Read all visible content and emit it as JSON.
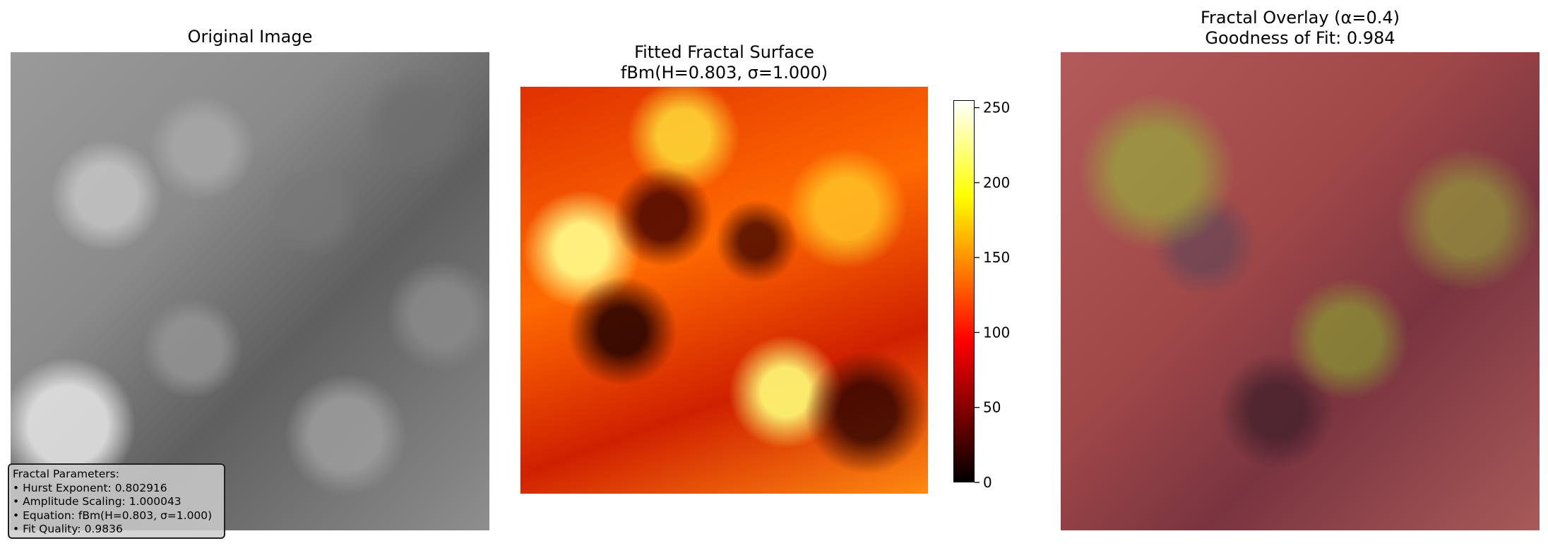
{
  "panels": {
    "original": {
      "title": "Original Image"
    },
    "fractal": {
      "title_line1": "Fitted Fractal Surface",
      "title_line2": "fBm(H=0.803, σ=1.000)"
    },
    "overlay": {
      "title_line1": "Fractal Overlay (α=0.4)",
      "title_line2": "Goodness of Fit: 0.984"
    }
  },
  "info_box": {
    "lines": [
      "Fractal Parameters:",
      "• Hurst Exponent: 0.802916",
      "• Amplitude Scaling: 1.000043",
      "• Equation: fBm(H=0.803, σ=1.000)",
      "• Fit Quality: 0.9836"
    ]
  },
  "chart_data": {
    "type": "heatmap",
    "colormap": "hot",
    "colorbar": {
      "range": [
        0,
        255
      ],
      "ticks": [
        0,
        50,
        100,
        150,
        200,
        250
      ],
      "tick_labels": [
        "0",
        "50",
        "100",
        "150",
        "200",
        "250"
      ]
    },
    "hurst_exponent": 0.803,
    "sigma": 1.0,
    "overlay_alpha": 0.4,
    "goodness_of_fit": 0.984
  }
}
